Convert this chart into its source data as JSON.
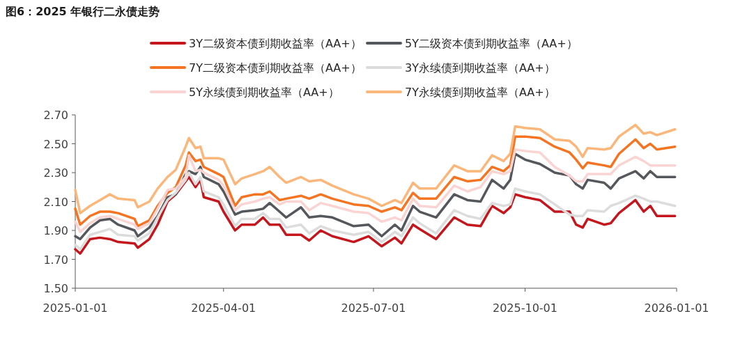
{
  "chart_data": {
    "type": "line",
    "title": "图6：2025 年银行二永债走势",
    "x": [
      "2025-01-01",
      "2025-01-04",
      "2025-01-10",
      "2025-01-16",
      "2025-01-22",
      "2025-01-27",
      "2025-02-06",
      "2025-02-08",
      "2025-02-15",
      "2025-02-20",
      "2025-02-26",
      "2025-03-03",
      "2025-03-09",
      "2025-03-11",
      "2025-03-15",
      "2025-03-18",
      "2025-03-20",
      "2025-03-29",
      "2025-04-01",
      "2025-04-08",
      "2025-04-12",
      "2025-04-20",
      "2025-04-25",
      "2025-04-29",
      "2025-05-05",
      "2025-05-09",
      "2025-05-18",
      "2025-05-23",
      "2025-05-30",
      "2025-06-06",
      "2025-06-19",
      "2025-06-28",
      "2025-07-06",
      "2025-07-14",
      "2025-07-18",
      "2025-07-25",
      "2025-07-29",
      "2025-08-08",
      "2025-08-19",
      "2025-08-27",
      "2025-09-04",
      "2025-09-11",
      "2025-09-18",
      "2025-09-22",
      "2025-09-25",
      "2025-10-01",
      "2025-10-10",
      "2025-10-19",
      "2025-10-28",
      "2025-11-01",
      "2025-11-05",
      "2025-11-08",
      "2025-11-18",
      "2025-11-22",
      "2025-11-27",
      "2025-12-07",
      "2025-12-12",
      "2025-12-16",
      "2025-12-20",
      "2025-12-31"
    ],
    "series": [
      {
        "name": "3Y二级资本债到期收益率（AA+）",
        "color": "#c4161c",
        "values": [
          1.77,
          1.74,
          1.84,
          1.85,
          1.84,
          1.82,
          1.81,
          1.78,
          1.84,
          1.94,
          2.1,
          2.15,
          2.24,
          2.27,
          2.2,
          2.25,
          2.13,
          2.1,
          2.03,
          1.9,
          1.94,
          1.94,
          1.99,
          1.94,
          1.94,
          1.87,
          1.87,
          1.83,
          1.9,
          1.86,
          1.82,
          1.86,
          1.79,
          1.85,
          1.81,
          1.94,
          1.91,
          1.84,
          1.99,
          1.94,
          1.93,
          2.07,
          2.02,
          2.06,
          2.15,
          2.13,
          2.11,
          2.03,
          2.03,
          1.94,
          1.92,
          1.98,
          1.94,
          1.95,
          2.02,
          2.11,
          2.03,
          2.07,
          2.0,
          2.0
        ]
      },
      {
        "name": "5Y二级资本债到期收益率（AA+）",
        "color": "#54575c",
        "values": [
          1.86,
          1.84,
          1.92,
          1.97,
          1.98,
          1.94,
          1.9,
          1.86,
          1.92,
          2.0,
          2.13,
          2.15,
          2.29,
          2.31,
          2.29,
          2.34,
          2.27,
          2.22,
          2.17,
          2.01,
          2.03,
          2.04,
          2.05,
          2.09,
          2.03,
          1.99,
          2.06,
          1.99,
          2.0,
          1.99,
          1.93,
          1.94,
          1.86,
          1.94,
          1.9,
          2.07,
          2.03,
          1.99,
          2.15,
          2.11,
          2.1,
          2.25,
          2.19,
          2.25,
          2.43,
          2.39,
          2.36,
          2.3,
          2.28,
          2.22,
          2.19,
          2.25,
          2.23,
          2.19,
          2.26,
          2.31,
          2.26,
          2.31,
          2.27,
          2.27
        ]
      },
      {
        "name": "7Y二级资本债到期收益率（AA+）",
        "color": "#f47421",
        "values": [
          2.05,
          1.94,
          2.0,
          2.03,
          2.03,
          2.02,
          1.98,
          1.93,
          1.97,
          2.07,
          2.16,
          2.2,
          2.35,
          2.44,
          2.38,
          2.39,
          2.34,
          2.29,
          2.27,
          2.07,
          2.13,
          2.15,
          2.15,
          2.17,
          2.11,
          2.12,
          2.14,
          2.12,
          2.15,
          2.12,
          2.08,
          2.07,
          2.03,
          2.06,
          2.04,
          2.16,
          2.12,
          2.12,
          2.27,
          2.24,
          2.25,
          2.34,
          2.31,
          2.35,
          2.55,
          2.55,
          2.54,
          2.48,
          2.44,
          2.39,
          2.33,
          2.37,
          2.35,
          2.34,
          2.43,
          2.53,
          2.47,
          2.5,
          2.46,
          2.48
        ]
      },
      {
        "name": "3Y永续债到期收益率（AA+）",
        "color": "#dcdcdc",
        "values": [
          1.8,
          1.77,
          1.87,
          1.89,
          1.91,
          1.87,
          1.86,
          1.83,
          1.88,
          1.99,
          2.11,
          2.16,
          2.25,
          2.3,
          2.22,
          2.27,
          2.17,
          2.13,
          2.08,
          1.93,
          1.98,
          1.98,
          2.02,
          1.98,
          1.98,
          1.92,
          1.94,
          1.88,
          1.93,
          1.9,
          1.87,
          1.89,
          1.82,
          1.89,
          1.86,
          1.99,
          1.95,
          1.88,
          2.04,
          2.0,
          1.98,
          2.09,
          2.07,
          2.08,
          2.19,
          2.17,
          2.15,
          2.08,
          2.01,
          2.0,
          2.0,
          2.04,
          2.03,
          2.07,
          2.09,
          2.14,
          2.12,
          2.1,
          2.1,
          2.07
        ]
      },
      {
        "name": "5Y永续债到期收益率（AA+）",
        "color": "#f9d4d2",
        "values": [
          1.96,
          1.89,
          1.95,
          1.99,
          2.0,
          1.98,
          1.94,
          1.91,
          1.95,
          2.05,
          2.18,
          2.19,
          2.27,
          2.42,
          2.31,
          2.32,
          2.3,
          2.25,
          2.21,
          2.04,
          2.08,
          2.1,
          2.12,
          2.13,
          2.08,
          2.1,
          2.1,
          2.04,
          2.09,
          2.07,
          2.03,
          2.02,
          1.96,
          1.99,
          1.97,
          2.12,
          2.07,
          2.06,
          2.21,
          2.17,
          2.2,
          2.31,
          2.29,
          2.31,
          2.46,
          2.45,
          2.44,
          2.34,
          2.28,
          2.24,
          2.24,
          2.29,
          2.29,
          2.29,
          2.35,
          2.41,
          2.38,
          2.35,
          2.35,
          2.35
        ]
      },
      {
        "name": "7Y永续债到期收益率（AA+）",
        "color": "#fbb67a",
        "values": [
          2.18,
          2.02,
          2.07,
          2.11,
          2.15,
          2.12,
          2.11,
          2.06,
          2.1,
          2.19,
          2.27,
          2.32,
          2.48,
          2.54,
          2.47,
          2.48,
          2.4,
          2.4,
          2.39,
          2.22,
          2.26,
          2.29,
          2.31,
          2.34,
          2.27,
          2.23,
          2.27,
          2.24,
          2.25,
          2.21,
          2.15,
          2.12,
          2.07,
          2.11,
          2.09,
          2.23,
          2.19,
          2.19,
          2.35,
          2.31,
          2.31,
          2.42,
          2.38,
          2.43,
          2.62,
          2.61,
          2.6,
          2.53,
          2.52,
          2.48,
          2.41,
          2.47,
          2.46,
          2.47,
          2.55,
          2.63,
          2.57,
          2.58,
          2.56,
          2.6
        ]
      }
    ],
    "xlim": [
      "2025-01-01",
      "2026-01-01"
    ],
    "xticks": [
      {
        "value": "2025-01-01",
        "label": "2025-01-01"
      },
      {
        "value": "2025-04-01",
        "label": "2025-04-01"
      },
      {
        "value": "2025-07-01",
        "label": "2025-07-01"
      },
      {
        "value": "2025-10-01",
        "label": "2025-10-01"
      },
      {
        "value": "2026-01-01",
        "label": "2026-01-01"
      }
    ],
    "ylim": [
      1.5,
      2.7
    ],
    "yticks": [
      {
        "value": 1.5,
        "label": "1.50"
      },
      {
        "value": 1.7,
        "label": "1.70"
      },
      {
        "value": 1.9,
        "label": "1.90"
      },
      {
        "value": 2.1,
        "label": "2.10"
      },
      {
        "value": 2.3,
        "label": "2.30"
      },
      {
        "value": 2.5,
        "label": "2.50"
      },
      {
        "value": 2.7,
        "label": "2.70"
      }
    ],
    "legend": "top"
  }
}
